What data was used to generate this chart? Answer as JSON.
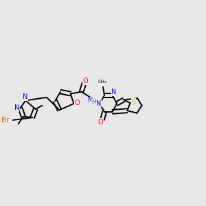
{
  "background_color": "#e8e8e8",
  "atom_colors": {
    "C": "#000000",
    "N": "#0000ff",
    "O": "#ff0000",
    "S": "#cccc00",
    "Br": "#cc6600",
    "H": "#008080"
  },
  "bond_color": "#000000",
  "figsize": [
    3.0,
    3.0
  ],
  "dpi": 100
}
